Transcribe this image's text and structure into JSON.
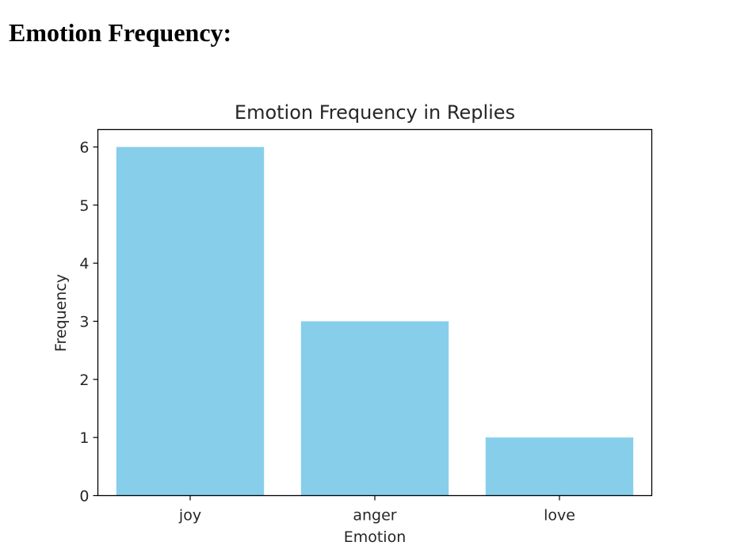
{
  "page": {
    "heading": "Emotion Frequency:"
  },
  "colors": {
    "bar": "#87ceeb",
    "axis": "#000000",
    "text": "#262626",
    "background": "#ffffff"
  },
  "chart_data": {
    "type": "bar",
    "title": "Emotion Frequency in Replies",
    "xlabel": "Emotion",
    "ylabel": "Frequency",
    "categories": [
      "joy",
      "anger",
      "love"
    ],
    "values": [
      6,
      3,
      1
    ],
    "ylim": [
      0,
      6.3
    ],
    "yticks": [
      0,
      1,
      2,
      3,
      4,
      5,
      6
    ],
    "grid": false,
    "legend": "none"
  }
}
